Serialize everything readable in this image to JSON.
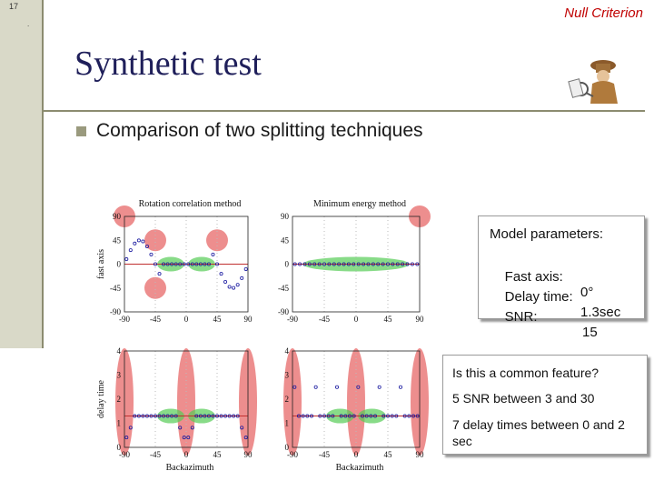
{
  "slide": {
    "number": "17",
    "dot": ".",
    "header_right": "Null Criterion",
    "title": "Synthetic test",
    "bullet": "Comparison of two splitting techniques",
    "logo_icon": "detective-logo-icon"
  },
  "model_params": {
    "title": "Model parameters:",
    "rows": [
      {
        "label": "Fast axis:",
        "value": "0°"
      },
      {
        "label": "Delay time:",
        "value": "1.3sec"
      },
      {
        "label": "SNR:",
        "value": "15"
      }
    ]
  },
  "notes": {
    "q": "Is this a common feature?",
    "l1": "5 SNR between 3 and 30",
    "l2": "7 delay times between 0 and 2 sec"
  },
  "colors": {
    "accent": "#c00000",
    "title": "#1f1f5a",
    "marker": "#1a1aa0",
    "green": "#55cc55",
    "red": "#e87272"
  },
  "chart_data": [
    {
      "type": "scatter",
      "title": "Rotation correlation method",
      "ylabel": "fast axis",
      "xlabel": "",
      "xlim": [
        -90,
        90
      ],
      "ylim": [
        -90,
        90
      ],
      "xticks": [
        "-90",
        "-45",
        "0",
        "45",
        "90"
      ],
      "yticks": [
        "90",
        "45",
        "0",
        "-45",
        "-90"
      ],
      "reference_line": 0,
      "null_regions": [
        [
          -90,
          90
        ],
        [
          -45,
          45
        ],
        [
          45,
          45
        ],
        [
          -45,
          -45
        ]
      ]
    },
    {
      "type": "scatter",
      "title": "Minimum energy method",
      "ylabel": "",
      "xlabel": "",
      "xlim": [
        -90,
        90
      ],
      "ylim": [
        -90,
        90
      ],
      "xticks": [
        "-90",
        "-45",
        "0",
        "45",
        "90"
      ],
      "yticks": [
        "90",
        "45",
        "0",
        "-45",
        "-90"
      ],
      "reference_line": 0,
      "null_regions": [
        [
          90,
          90
        ]
      ]
    },
    {
      "type": "scatter",
      "title": "",
      "ylabel": "delay time",
      "xlabel": "Backazimuth",
      "xlim": [
        -90,
        90
      ],
      "ylim": [
        0,
        4
      ],
      "xticks": [
        "-90",
        "-45",
        "0",
        "45",
        "90"
      ],
      "yticks": [
        "4",
        "3",
        "2",
        "1",
        "0"
      ],
      "reference_line": 1.3,
      "null_regions": [
        [
          -90,
          0
        ],
        [
          0,
          0
        ],
        [
          90,
          0
        ]
      ]
    },
    {
      "type": "scatter",
      "title": "",
      "ylabel": "",
      "xlabel": "Backazimuth",
      "xlim": [
        -90,
        90
      ],
      "ylim": [
        0,
        4
      ],
      "xticks": [
        "-90",
        "-45",
        "0",
        "45",
        "90"
      ],
      "yticks": [
        "4",
        "3",
        "2",
        "1",
        "0"
      ],
      "reference_line": 1.3,
      "null_regions": [
        [
          -90,
          2
        ],
        [
          0,
          2
        ],
        [
          90,
          2
        ]
      ]
    }
  ]
}
